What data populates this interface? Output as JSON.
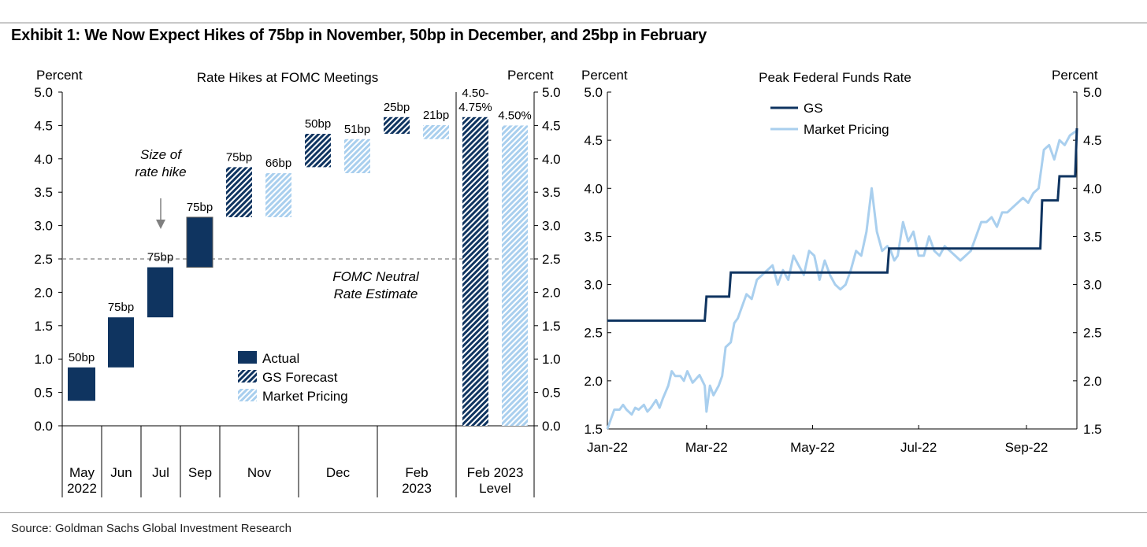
{
  "title": "Exhibit 1: We Now Expect Hikes of 75bp in November, 50bp in December, and 25bp in February",
  "source": "Source: Goldman Sachs Global Investment Research",
  "colors": {
    "actual": "#0f3460",
    "gs": "#0f3460",
    "market": "#a9cfee",
    "neutral_line": "#808080",
    "axis": "#000000"
  },
  "chart_data": [
    {
      "type": "bar",
      "chart_kind": "waterfall",
      "title": "Rate Hikes at FOMC Meetings",
      "ylabel_left": "Percent",
      "ylabel_right": "Percent",
      "ylim": [
        0.0,
        5.0
      ],
      "yticks": [
        "0.0",
        "0.5",
        "1.0",
        "1.5",
        "2.0",
        "2.5",
        "3.0",
        "3.5",
        "4.0",
        "4.5",
        "5.0"
      ],
      "categories": [
        {
          "label": "May 2022",
          "lines": [
            "May",
            "2022"
          ]
        },
        {
          "label": "Jun",
          "lines": [
            "Jun"
          ]
        },
        {
          "label": "Jul",
          "lines": [
            "Jul"
          ]
        },
        {
          "label": "Sep",
          "lines": [
            "Sep"
          ]
        },
        {
          "label": "Nov",
          "lines": [
            "Nov"
          ]
        },
        {
          "label": "Dec",
          "lines": [
            "Dec"
          ]
        },
        {
          "label": "Feb 2023",
          "lines": [
            "Feb",
            "2023"
          ]
        },
        {
          "label": "Feb 2023 Level",
          "lines": [
            "Feb 2023",
            "Level"
          ]
        }
      ],
      "bars": [
        {
          "category": "May 2022",
          "series": "Actual",
          "from": 0.375,
          "to": 0.875,
          "label": "50bp"
        },
        {
          "category": "Jun",
          "series": "Actual",
          "from": 0.875,
          "to": 1.625,
          "label": "75bp"
        },
        {
          "category": "Jul",
          "series": "Actual",
          "from": 1.625,
          "to": 2.375,
          "label": "75bp"
        },
        {
          "category": "Sep",
          "series": "Actual",
          "from": 2.375,
          "to": 3.125,
          "label": "75bp"
        },
        {
          "category": "Nov",
          "series": "GS Forecast",
          "from": 3.125,
          "to": 3.875,
          "label": "75bp"
        },
        {
          "category": "Nov",
          "series": "Market Pricing",
          "from": 3.125,
          "to": 3.785,
          "label": "66bp"
        },
        {
          "category": "Dec",
          "series": "GS Forecast",
          "from": 3.875,
          "to": 4.375,
          "label": "50bp"
        },
        {
          "category": "Dec",
          "series": "Market Pricing",
          "from": 3.785,
          "to": 4.295,
          "label": "51bp"
        },
        {
          "category": "Feb 2023",
          "series": "GS Forecast",
          "from": 4.375,
          "to": 4.625,
          "label": "25bp"
        },
        {
          "category": "Feb 2023",
          "series": "Market Pricing",
          "from": 4.295,
          "to": 4.505,
          "label": "21bp"
        },
        {
          "category": "Feb 2023 Level",
          "series": "GS Forecast",
          "from": 0.0,
          "to": 4.625,
          "label": "4.50-\n4.75%"
        },
        {
          "category": "Feb 2023 Level",
          "series": "Market Pricing",
          "from": 0.0,
          "to": 4.5,
          "label": "4.50%"
        }
      ],
      "legend": {
        "placement": "lower-center",
        "entries": [
          "Actual",
          "GS Forecast",
          "Market Pricing"
        ]
      },
      "annotations": [
        {
          "text": "Size of\nrate hike",
          "style": "italic",
          "arrow": "down"
        },
        {
          "text": "FOMC Neutral\nRate Estimate",
          "style": "italic",
          "reference_y": 2.5
        }
      ],
      "reference_line": {
        "y": 2.5,
        "style": "dashed"
      }
    },
    {
      "type": "line",
      "title": "Peak Federal Funds Rate",
      "ylabel_left": "Percent",
      "ylabel_right": "Percent",
      "ylim": [
        1.5,
        5.0
      ],
      "yticks": [
        "1.5",
        "2.0",
        "2.5",
        "3.0",
        "3.5",
        "4.0",
        "4.5",
        "5.0"
      ],
      "xlim": [
        "2022-01-03",
        "2022-09-30"
      ],
      "xticks": [
        {
          "date": "2022-01-03",
          "label": "Jan-22"
        },
        {
          "date": "2022-03-01",
          "label": "Mar-22"
        },
        {
          "date": "2022-05-01",
          "label": "May-22"
        },
        {
          "date": "2022-07-01",
          "label": "Jul-22"
        },
        {
          "date": "2022-09-01",
          "label": "Sep-22"
        }
      ],
      "legend": {
        "placement": "top-left",
        "entries": [
          "GS",
          "Market Pricing"
        ]
      },
      "series": [
        {
          "name": "GS",
          "step": true,
          "x": [
            "2022-01-03",
            "2022-02-28",
            "2022-03-01",
            "2022-03-14",
            "2022-03-15",
            "2022-06-13",
            "2022-06-14",
            "2022-09-09",
            "2022-09-10",
            "2022-09-19",
            "2022-09-20",
            "2022-09-29",
            "2022-09-30"
          ],
          "y": [
            2.625,
            2.625,
            2.875,
            2.875,
            3.125,
            3.125,
            3.375,
            3.375,
            3.875,
            3.875,
            4.125,
            4.125,
            4.625
          ]
        },
        {
          "name": "Market Pricing",
          "step": false,
          "x": [
            "2022-01-03",
            "2022-01-05",
            "2022-01-07",
            "2022-01-10",
            "2022-01-12",
            "2022-01-14",
            "2022-01-17",
            "2022-01-19",
            "2022-01-21",
            "2022-01-24",
            "2022-01-26",
            "2022-01-28",
            "2022-01-31",
            "2022-02-02",
            "2022-02-04",
            "2022-02-07",
            "2022-02-09",
            "2022-02-11",
            "2022-02-14",
            "2022-02-16",
            "2022-02-18",
            "2022-02-21",
            "2022-02-23",
            "2022-02-25",
            "2022-02-28",
            "2022-03-01",
            "2022-03-03",
            "2022-03-05",
            "2022-03-08",
            "2022-03-10",
            "2022-03-12",
            "2022-03-15",
            "2022-03-17",
            "2022-03-19",
            "2022-03-21",
            "2022-03-24",
            "2022-03-27",
            "2022-03-30",
            "2022-04-02",
            "2022-04-05",
            "2022-04-08",
            "2022-04-11",
            "2022-04-14",
            "2022-04-17",
            "2022-04-20",
            "2022-04-23",
            "2022-04-26",
            "2022-04-29",
            "2022-05-02",
            "2022-05-05",
            "2022-05-08",
            "2022-05-11",
            "2022-05-14",
            "2022-05-17",
            "2022-05-20",
            "2022-05-23",
            "2022-05-26",
            "2022-05-29",
            "2022-06-01",
            "2022-06-04",
            "2022-06-07",
            "2022-06-10",
            "2022-06-13",
            "2022-06-15",
            "2022-06-17",
            "2022-06-19",
            "2022-06-22",
            "2022-06-25",
            "2022-06-28",
            "2022-07-01",
            "2022-07-04",
            "2022-07-07",
            "2022-07-10",
            "2022-07-13",
            "2022-07-16",
            "2022-07-19",
            "2022-07-22",
            "2022-07-25",
            "2022-07-28",
            "2022-07-31",
            "2022-08-03",
            "2022-08-06",
            "2022-08-09",
            "2022-08-12",
            "2022-08-15",
            "2022-08-18",
            "2022-08-21",
            "2022-08-24",
            "2022-08-27",
            "2022-08-30",
            "2022-09-02",
            "2022-09-05",
            "2022-09-08",
            "2022-09-11",
            "2022-09-14",
            "2022-09-17",
            "2022-09-20",
            "2022-09-23",
            "2022-09-26",
            "2022-09-30"
          ],
          "y": [
            1.5,
            1.6,
            1.7,
            1.7,
            1.75,
            1.7,
            1.65,
            1.72,
            1.7,
            1.75,
            1.68,
            1.72,
            1.8,
            1.72,
            1.82,
            1.95,
            2.1,
            2.05,
            2.05,
            2.0,
            2.1,
            1.98,
            2.02,
            2.06,
            1.95,
            1.68,
            1.95,
            1.85,
            1.95,
            2.05,
            2.35,
            2.4,
            2.6,
            2.65,
            2.75,
            2.9,
            2.85,
            3.05,
            3.1,
            3.15,
            3.2,
            3.0,
            3.15,
            3.05,
            3.3,
            3.2,
            3.1,
            3.35,
            3.3,
            3.05,
            3.25,
            3.1,
            3.0,
            2.95,
            3.0,
            3.15,
            3.35,
            3.3,
            3.55,
            4.0,
            3.55,
            3.35,
            3.4,
            3.35,
            3.25,
            3.3,
            3.65,
            3.45,
            3.55,
            3.3,
            3.3,
            3.5,
            3.35,
            3.3,
            3.4,
            3.35,
            3.3,
            3.25,
            3.3,
            3.35,
            3.5,
            3.65,
            3.65,
            3.7,
            3.6,
            3.75,
            3.75,
            3.8,
            3.85,
            3.9,
            3.85,
            3.95,
            4.0,
            4.4,
            4.45,
            4.3,
            4.5,
            4.45,
            4.55,
            4.6
          ]
        }
      ]
    }
  ]
}
